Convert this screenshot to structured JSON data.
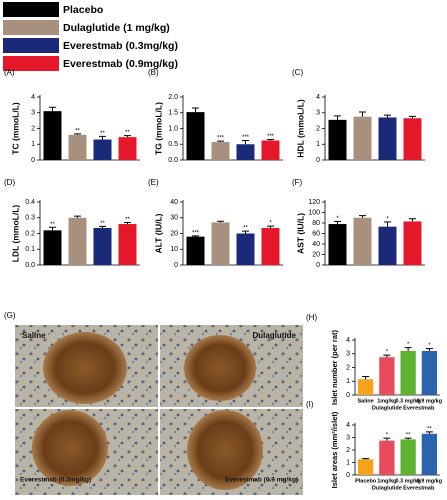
{
  "legend": [
    {
      "name": "Placebo",
      "color": "#000000"
    },
    {
      "name": "Dulaglutide (1 mg/kg)",
      "color": "#a8907f"
    },
    {
      "name": "Everestmab (0.3mg/kg)",
      "color": "#1b2a78"
    },
    {
      "name": "Everestmab (0.9mg/kg)",
      "color": "#e5182b"
    }
  ],
  "panel_g": {
    "panel": "(G)",
    "labels": [
      "Saline",
      "Dulaglutide",
      "Everestmab (0.3mg/kg)",
      "Everestmab (0.9 mg/kg)"
    ]
  },
  "chart_data": [
    {
      "type": "bar",
      "panel": "(A)",
      "y_label": "TC (mmoL/L)",
      "values": [
        3.1,
        1.6,
        1.3,
        1.45
      ],
      "errors": [
        0.25,
        0.06,
        0.2,
        0.1
      ],
      "annotations": [
        null,
        "**",
        "**",
        "**"
      ],
      "ylim": [
        0,
        4
      ],
      "yticks": [
        0,
        1,
        2,
        3,
        4
      ]
    },
    {
      "type": "bar",
      "panel": "(B)",
      "y_label": "TG (mmoL/L)",
      "values": [
        1.52,
        0.57,
        0.5,
        0.62
      ],
      "errors": [
        0.13,
        0.03,
        0.12,
        0.03
      ],
      "annotations": [
        null,
        "***",
        "***",
        "***"
      ],
      "ylim": [
        0,
        2
      ],
      "yticks": [
        {
          "value": 0,
          "label": "0.0"
        },
        0.5,
        {
          "value": 1,
          "label": "1.0"
        },
        1.5,
        {
          "value": 2,
          "label": "2.0"
        }
      ]
    },
    {
      "type": "bar",
      "panel": "(C)",
      "y_label": "HDL (mmoL/L)",
      "values": [
        2.55,
        2.75,
        2.7,
        2.65
      ],
      "errors": [
        0.25,
        0.3,
        0.15,
        0.12
      ],
      "annotations": [
        null,
        null,
        null,
        null
      ],
      "ylim": [
        0,
        4
      ],
      "yticks": [
        0,
        1,
        2,
        3,
        4
      ]
    },
    {
      "type": "bar",
      "panel": "(D)",
      "y_label": "LDL (mmoL/L)",
      "values": [
        0.22,
        0.3,
        0.235,
        0.26
      ],
      "errors": [
        0.02,
        0.01,
        0.01,
        0.01
      ],
      "annotations": [
        "**",
        null,
        "**",
        "**"
      ],
      "ylim": [
        0,
        0.4
      ],
      "yticks": [
        {
          "value": 0,
          "label": "0.0"
        },
        0.1,
        0.2,
        0.3,
        0.4
      ]
    },
    {
      "type": "bar",
      "panel": "(E)",
      "y_label": "ALT (IU/L)",
      "values": [
        18,
        27,
        20,
        23.5
      ],
      "errors": [
        0.5,
        0.8,
        1.5,
        1.2
      ],
      "annotations": [
        "***",
        null,
        "**",
        "*"
      ],
      "ylim": [
        0,
        40
      ],
      "yticks": [
        0,
        10,
        20,
        30,
        40
      ]
    },
    {
      "type": "bar",
      "panel": "(F)",
      "y_label": "AST (IU/L)",
      "values": [
        78,
        90,
        73,
        83
      ],
      "errors": [
        5,
        4,
        9,
        5
      ],
      "annotations": [
        "*",
        null,
        "*",
        null
      ],
      "ylim": [
        0,
        120
      ],
      "yticks": [
        0,
        20,
        40,
        60,
        80,
        100,
        120
      ]
    },
    {
      "type": "bar",
      "panel": "(H)",
      "y_label": "Islet number (per rat)",
      "categories": [
        "Saline",
        "1mg/kg",
        "0.3 mg/kg",
        "0.9 mg/kg"
      ],
      "groups": [
        {
          "label": "Dulaglutide",
          "categories": [
            1
          ]
        },
        {
          "label": "Everestmab",
          "categories": [
            2,
            3
          ]
        }
      ],
      "colors": [
        "#f5a21d",
        "#e84c5c",
        "#5db32f",
        "#2b63ae"
      ],
      "values": [
        1.15,
        2.75,
        3.2,
        3.2
      ],
      "errors": [
        0.2,
        0.15,
        0.25,
        0.18
      ],
      "annotations": [
        null,
        "*",
        "*",
        "*"
      ],
      "ylim": [
        0,
        4
      ],
      "yticks": [
        0,
        1,
        2,
        3,
        4
      ]
    },
    {
      "type": "bar",
      "panel": "(I)",
      "y_label": "Islet areas (mm²/islet)",
      "categories": [
        "Placebo",
        "1mg/kg",
        "0.3 mg/kg",
        "0.9 mg/kg"
      ],
      "groups": [
        {
          "label": "Dulaglutide",
          "categories": [
            1
          ]
        },
        {
          "label": "Everestmab",
          "categories": [
            2,
            3
          ]
        }
      ],
      "colors": [
        "#f5a21d",
        "#e84c5c",
        "#5db32f",
        "#2b63ae"
      ],
      "values": [
        1.25,
        2.75,
        2.85,
        3.3
      ],
      "errors": [
        0.06,
        0.2,
        0.1,
        0.15
      ],
      "annotations": [
        null,
        "*",
        "**",
        "**"
      ],
      "ylim": [
        0,
        4
      ],
      "yticks": [
        0,
        1,
        2,
        3,
        4
      ]
    }
  ]
}
